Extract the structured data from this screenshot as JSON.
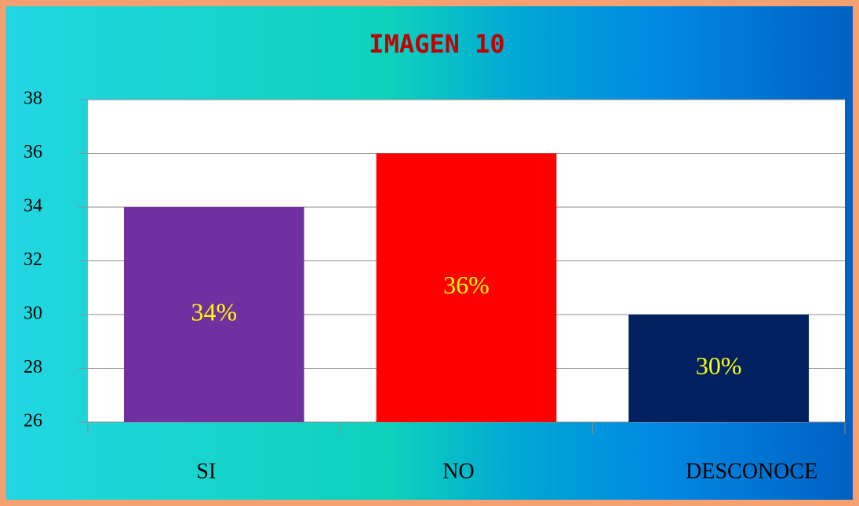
{
  "chart_data": {
    "type": "bar",
    "title": "IMAGEN 10",
    "categories": [
      "SI",
      "NO",
      "DESCONOCE"
    ],
    "values": [
      34,
      36,
      30
    ],
    "value_labels": [
      "34%",
      "36%",
      "30%"
    ],
    "colors": [
      "#7030a0",
      "#ff0000",
      "#002060"
    ],
    "ylim": [
      26,
      38
    ],
    "yticks": [
      26,
      28,
      30,
      32,
      34,
      36,
      38
    ],
    "grid": true
  }
}
